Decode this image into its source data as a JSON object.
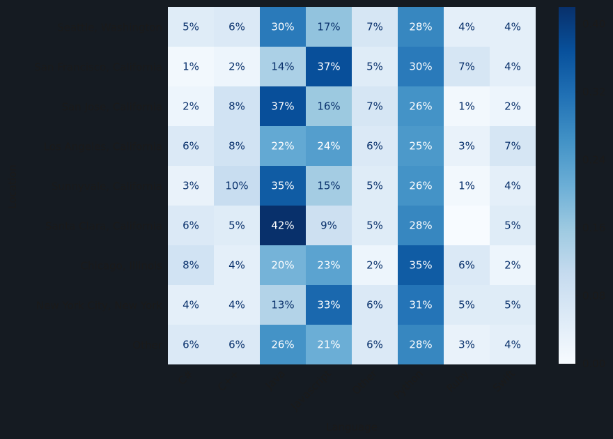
{
  "chart_data": {
    "type": "heatmap",
    "title": "",
    "xlabel": "Language",
    "ylabel": "Location",
    "x": [
      "C#",
      "C++",
      "Java",
      "Javascript",
      "Other",
      "Python",
      "Ruby",
      "Swift"
    ],
    "y": [
      "Seattle, Washington",
      "San Francisco, California",
      "San Jose, California",
      "Los Angeles, California",
      "Sunnyvale, California",
      "Santa Clara, California",
      "Chicago, Illinois",
      "New York City, New York",
      "Other"
    ],
    "values": [
      [
        0.05,
        0.06,
        0.3,
        0.17,
        0.07,
        0.28,
        0.04,
        0.04
      ],
      [
        0.01,
        0.02,
        0.14,
        0.37,
        0.05,
        0.3,
        0.07,
        0.04
      ],
      [
        0.02,
        0.08,
        0.37,
        0.16,
        0.07,
        0.26,
        0.01,
        0.02
      ],
      [
        0.06,
        0.08,
        0.22,
        0.24,
        0.06,
        0.25,
        0.03,
        0.07
      ],
      [
        0.03,
        0.1,
        0.35,
        0.15,
        0.05,
        0.26,
        0.01,
        0.04
      ],
      [
        0.06,
        0.05,
        0.42,
        0.09,
        0.05,
        0.28,
        0.0,
        0.05
      ],
      [
        0.08,
        0.04,
        0.2,
        0.23,
        0.02,
        0.35,
        0.06,
        0.02
      ],
      [
        0.04,
        0.04,
        0.13,
        0.33,
        0.06,
        0.31,
        0.05,
        0.05
      ],
      [
        0.06,
        0.06,
        0.26,
        0.21,
        0.06,
        0.28,
        0.03,
        0.04
      ]
    ],
    "cell_labels": [
      [
        "5%",
        "6%",
        "30%",
        "17%",
        "7%",
        "28%",
        "4%",
        "4%"
      ],
      [
        "1%",
        "2%",
        "14%",
        "37%",
        "5%",
        "30%",
        "7%",
        "4%"
      ],
      [
        "2%",
        "8%",
        "37%",
        "16%",
        "7%",
        "26%",
        "1%",
        "2%"
      ],
      [
        "6%",
        "8%",
        "22%",
        "24%",
        "6%",
        "25%",
        "3%",
        "7%"
      ],
      [
        "3%",
        "10%",
        "35%",
        "15%",
        "5%",
        "26%",
        "1%",
        "4%"
      ],
      [
        "6%",
        "5%",
        "42%",
        "9%",
        "5%",
        "28%",
        "",
        "5%"
      ],
      [
        "8%",
        "4%",
        "20%",
        "23%",
        "2%",
        "35%",
        "6%",
        "2%"
      ],
      [
        "4%",
        "4%",
        "13%",
        "33%",
        "6%",
        "31%",
        "5%",
        "5%"
      ],
      [
        "6%",
        "6%",
        "26%",
        "21%",
        "6%",
        "28%",
        "3%",
        "4%"
      ]
    ],
    "colorbar": {
      "range": [
        0.0,
        0.42
      ],
      "ticks": [
        0.0,
        0.08,
        0.16,
        0.24,
        0.32,
        0.4
      ],
      "tick_labels": [
        "0.00",
        "0.08",
        "0.16",
        "0.24",
        "0.32",
        "0.40"
      ]
    },
    "colormap": [
      "#f7fbff",
      "#deebf7",
      "#c6dbef",
      "#9ecae1",
      "#6baed6",
      "#4292c6",
      "#2171b5",
      "#08519c",
      "#08306b"
    ],
    "text_colors": {
      "light": "#ffffff",
      "dark": "#08306b"
    }
  }
}
